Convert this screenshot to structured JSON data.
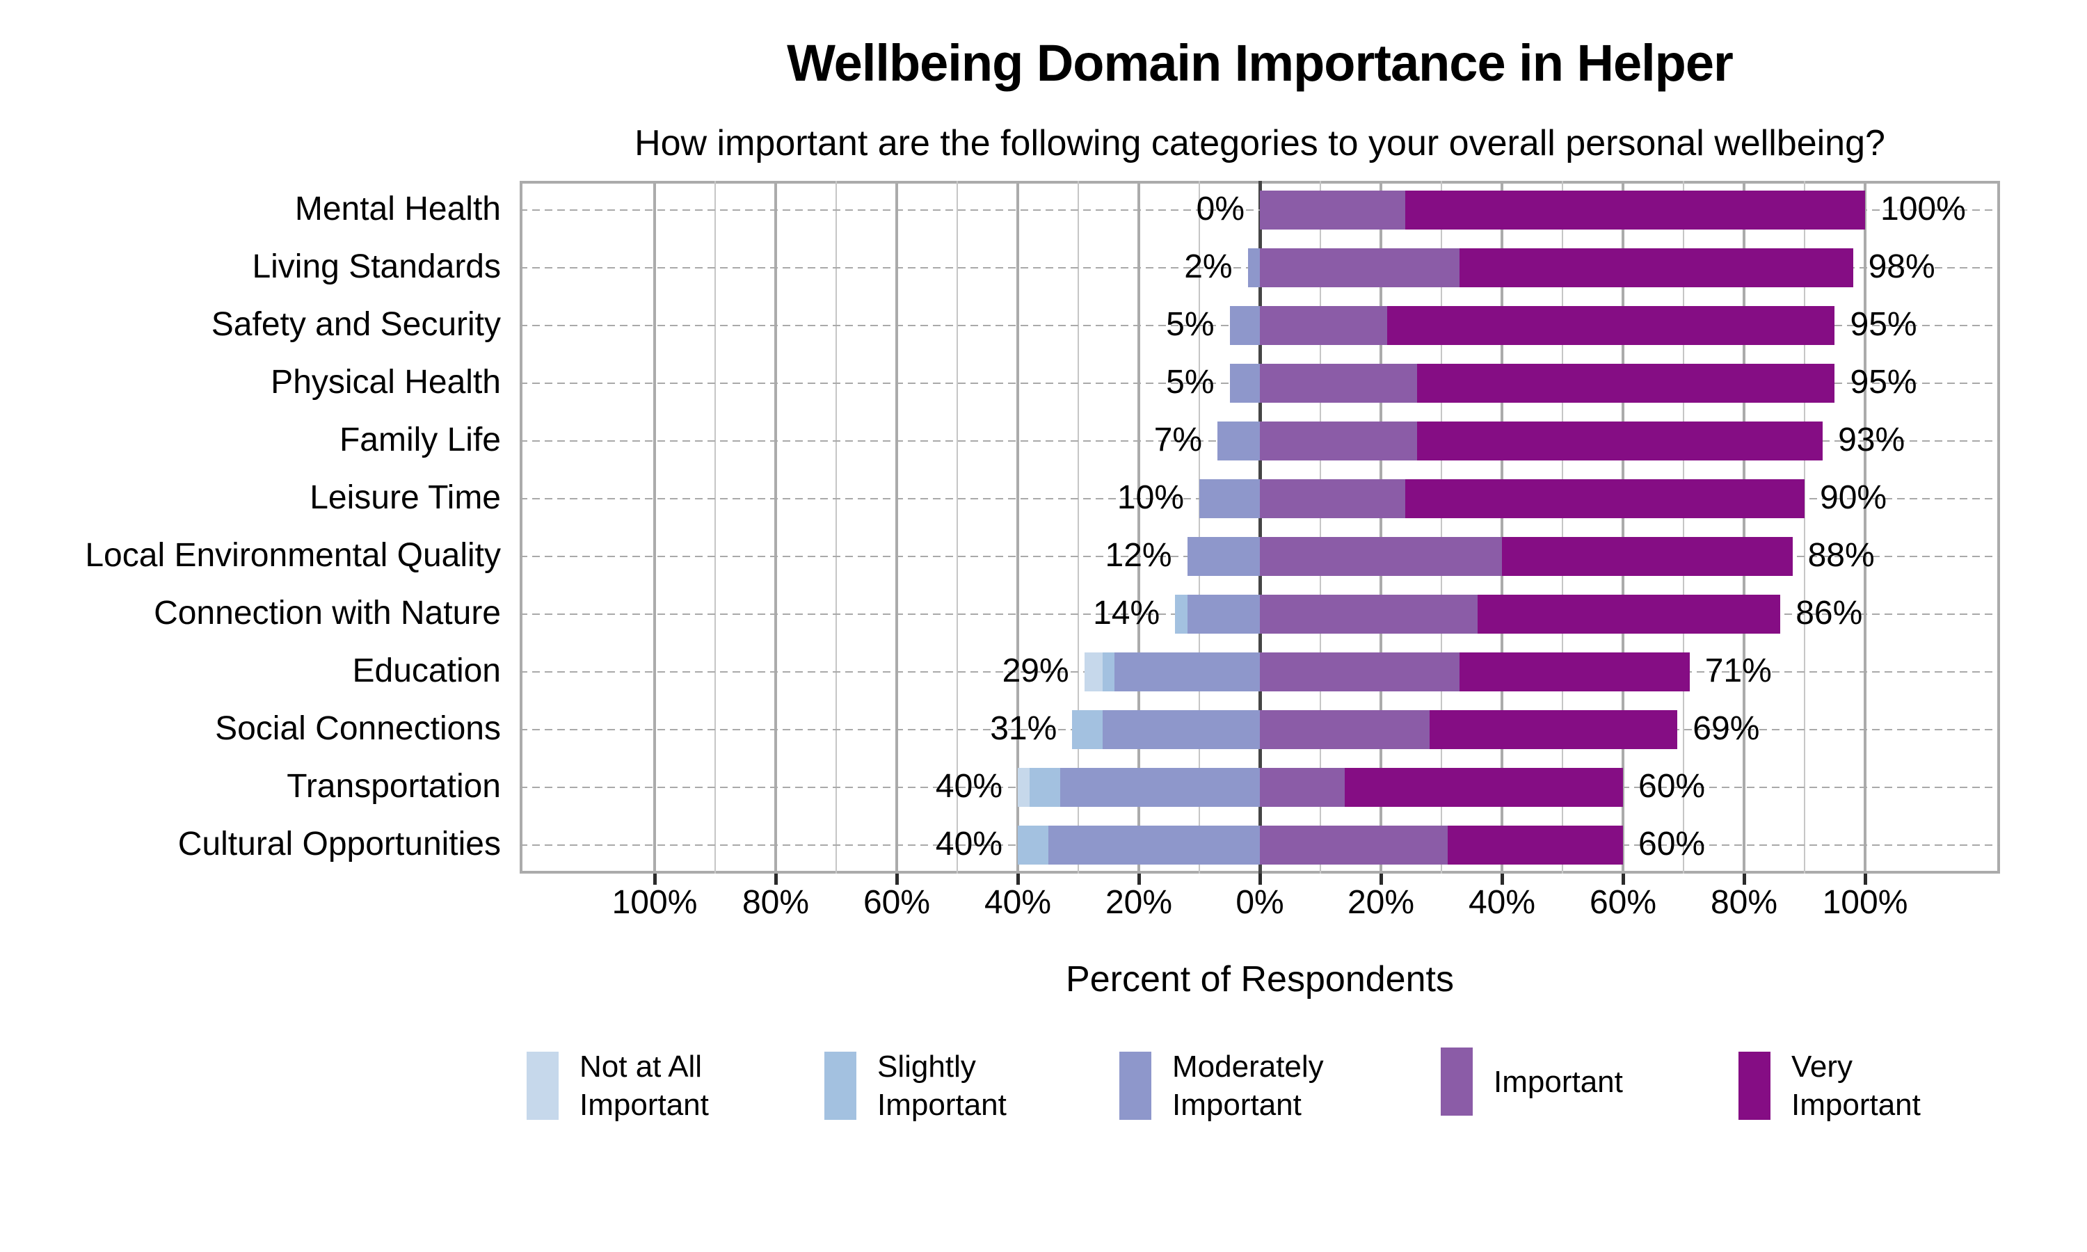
{
  "title": "Wellbeing Domain Importance in Helper",
  "subtitle": "How important are the following categories to your overall personal wellbeing?",
  "xlabel": "Percent of Respondents",
  "colors": {
    "not_at_all": "#c6d8eb",
    "slightly": "#a3c1e0",
    "moderately": "#8e97cb",
    "important": "#8b5ca7",
    "very_important": "#850d84",
    "grid_minor": "#c6c6c6",
    "grid_major": "#ababab",
    "grid_center": "#454545",
    "plot_border": "#ababab",
    "row_dash": "#a9a9a9"
  },
  "chart_data": {
    "type": "bar",
    "subtype": "diverging-stacked-likert",
    "title": "Wellbeing Domain Importance in Helper",
    "subtitle": "How important are the following categories to your overall personal wellbeing?",
    "xlabel": "Percent of Respondents",
    "axis_range_pct": [
      -100,
      100
    ],
    "grid": "vertical every 10%, major every 20%, dashed horizontal per row",
    "legend_position": "bottom",
    "categories": [
      "Mental Health",
      "Living Standards",
      "Safety and Security",
      "Physical Health",
      "Family Life",
      "Leisure Time",
      "Local Environmental Quality",
      "Connection with Nature",
      "Education",
      "Social Connections",
      "Transportation",
      "Cultural Opportunities"
    ],
    "series": [
      {
        "name": "Not at All Important",
        "color_key": "not_at_all",
        "side": "left",
        "values": [
          0,
          0,
          0,
          0,
          0,
          0,
          0,
          0,
          3,
          0,
          2,
          0
        ]
      },
      {
        "name": "Slightly Important",
        "color_key": "slightly",
        "side": "left",
        "values": [
          0,
          0,
          0,
          0,
          0,
          0,
          0,
          2,
          2,
          5,
          5,
          5
        ]
      },
      {
        "name": "Moderately Important",
        "color_key": "moderately",
        "side": "left",
        "values": [
          0,
          2,
          5,
          5,
          7,
          10,
          12,
          12,
          24,
          26,
          33,
          35
        ]
      },
      {
        "name": "Important",
        "color_key": "important",
        "side": "right",
        "values": [
          24,
          33,
          21,
          26,
          26,
          24,
          40,
          36,
          33,
          28,
          14,
          31
        ]
      },
      {
        "name": "Very Important",
        "color_key": "very_important",
        "side": "right",
        "values": [
          76,
          65,
          74,
          69,
          67,
          66,
          48,
          50,
          38,
          41,
          46,
          29
        ]
      }
    ],
    "left_total_labels": [
      "0%",
      "2%",
      "5%",
      "5%",
      "7%",
      "10%",
      "12%",
      "14%",
      "29%",
      "31%",
      "40%",
      "40%"
    ],
    "right_total_labels": [
      "100%",
      "98%",
      "95%",
      "95%",
      "93%",
      "90%",
      "88%",
      "86%",
      "71%",
      "69%",
      "60%",
      "60%"
    ],
    "x_tick_values": [
      -100,
      -80,
      -60,
      -40,
      -20,
      0,
      20,
      40,
      60,
      80,
      100
    ],
    "x_tick_labels": [
      "100%",
      "80%",
      "60%",
      "40%",
      "20%",
      "0%",
      "20%",
      "40%",
      "60%",
      "80%",
      "100%"
    ],
    "legend": [
      {
        "label_lines": [
          "Not at All",
          "Important"
        ],
        "color_key": "not_at_all"
      },
      {
        "label_lines": [
          "Slightly",
          "Important"
        ],
        "color_key": "slightly"
      },
      {
        "label_lines": [
          "Moderately",
          "Important"
        ],
        "color_key": "moderately"
      },
      {
        "label_lines": [
          "Important"
        ],
        "color_key": "important"
      },
      {
        "label_lines": [
          "Very",
          "Important"
        ],
        "color_key": "very_important"
      }
    ]
  }
}
